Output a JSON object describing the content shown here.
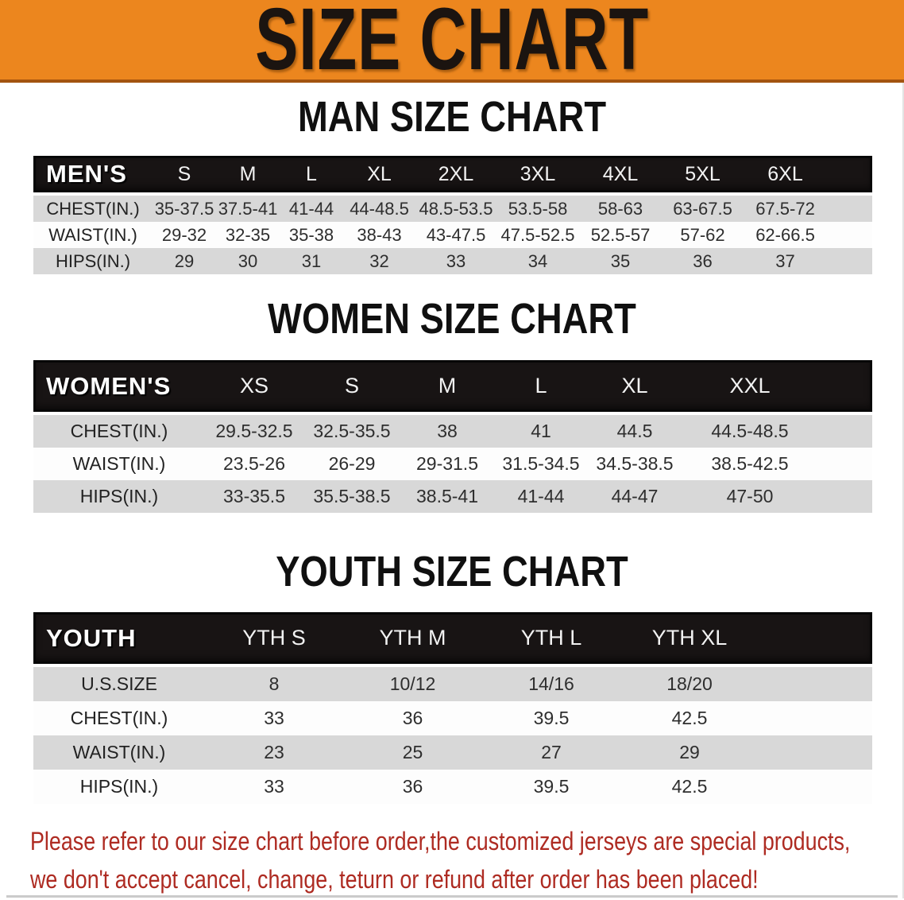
{
  "banner": {
    "title": "SIZE CHART"
  },
  "men": {
    "heading": "MAN SIZE CHART",
    "header_label": "MEN'S",
    "columns": [
      "S",
      "M",
      "L",
      "XL",
      "2XL",
      "3XL",
      "4XL",
      "5XL",
      "6XL"
    ],
    "rows": [
      {
        "label": "CHEST(IN.)",
        "values": [
          "35-37.5",
          "37.5-41",
          "41-44",
          "44-48.5",
          "48.5-53.5",
          "53.5-58",
          "58-63",
          "63-67.5",
          "67.5-72"
        ]
      },
      {
        "label": "WAIST(IN.)",
        "values": [
          "29-32",
          "32-35",
          "35-38",
          "38-43",
          "43-47.5",
          "47.5-52.5",
          "52.5-57",
          "57-62",
          "62-66.5"
        ]
      },
      {
        "label": "HIPS(IN.)",
        "values": [
          "29",
          "30",
          "31",
          "32",
          "33",
          "34",
          "35",
          "36",
          "37"
        ]
      }
    ]
  },
  "women": {
    "heading": "WOMEN SIZE CHART",
    "header_label": "WOMEN'S",
    "columns": [
      "XS",
      "S",
      "M",
      "L",
      "XL",
      "XXL"
    ],
    "rows": [
      {
        "label": "CHEST(IN.)",
        "values": [
          "29.5-32.5",
          "32.5-35.5",
          "38",
          "41",
          "44.5",
          "44.5-48.5"
        ]
      },
      {
        "label": "WAIST(IN.)",
        "values": [
          "23.5-26",
          "26-29",
          "29-31.5",
          "31.5-34.5",
          "34.5-38.5",
          "38.5-42.5"
        ]
      },
      {
        "label": "HIPS(IN.)",
        "values": [
          "33-35.5",
          "35.5-38.5",
          "38.5-41",
          "41-44",
          "44-47",
          "47-50"
        ]
      }
    ]
  },
  "youth": {
    "heading": "YOUTH SIZE CHART",
    "header_label": "YOUTH",
    "columns": [
      "YTH S",
      "YTH M",
      "YTH L",
      "YTH XL"
    ],
    "rows": [
      {
        "label": "U.S.SIZE",
        "values": [
          "8",
          "10/12",
          "14/16",
          "18/20"
        ]
      },
      {
        "label": "CHEST(IN.)",
        "values": [
          "33",
          "36",
          "39.5",
          "42.5"
        ]
      },
      {
        "label": "WAIST(IN.)",
        "values": [
          "23",
          "25",
          "27",
          "29"
        ]
      },
      {
        "label": "HIPS(IN.)",
        "values": [
          "33",
          "36",
          "39.5",
          "42.5"
        ]
      }
    ]
  },
  "footer": {
    "line1": "Please refer to our size chart before order,the customized jerseys are special products,",
    "line2": "we don't accept cancel, change, teturn or refund after order has been placed!"
  },
  "colors": {
    "banner_orange": "#EC861E",
    "banner_edge": "#A35410",
    "header_black": "#181414",
    "row_gray": "#D8D8D8",
    "footer_red": "#AE2B22"
  }
}
